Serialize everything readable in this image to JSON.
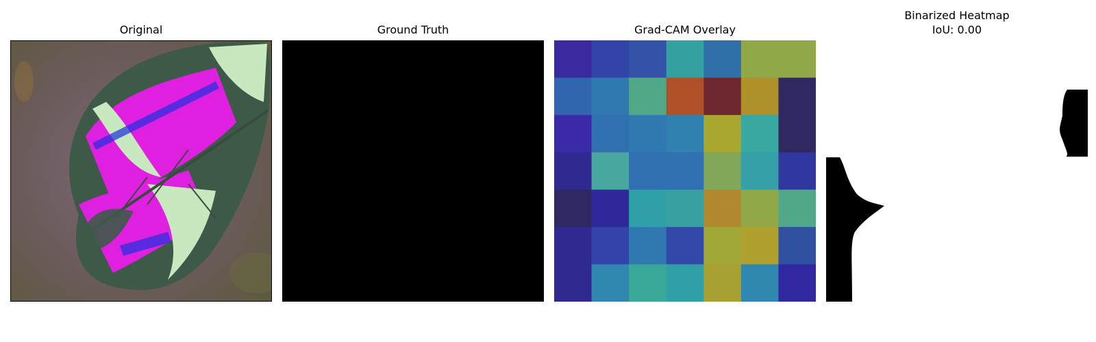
{
  "panels": {
    "original": {
      "title": "Original"
    },
    "ground_truth": {
      "title": "Ground Truth"
    },
    "gradcam": {
      "title": "Grad-CAM Overlay"
    },
    "binarized": {
      "title": "Binarized Heatmap",
      "subtitle": "IoU: 0.00"
    }
  },
  "chart_data": [
    {
      "type": "image",
      "title": "Original",
      "content": "leaf photo with magenta / blue / pale-green overlay"
    },
    {
      "type": "image",
      "title": "Ground Truth",
      "mask": "all zeros (black)"
    },
    {
      "type": "heatmap",
      "title": "Grad-CAM Overlay",
      "rows": 7,
      "cols": 7,
      "colors": [
        [
          "#3a2aa0",
          "#3344a8",
          "#3352a8",
          "#34a0a0",
          "#3070a8",
          "#90a848",
          "#90a848"
        ],
        [
          "#3066b0",
          "#3078b0",
          "#50a888",
          "#b05028",
          "#702830",
          "#b09028",
          "#302860"
        ],
        [
          "#3a2aa8",
          "#3070b0",
          "#3078b0",
          "#3080b0",
          "#a8a830",
          "#38a8a0",
          "#302860"
        ],
        [
          "#302a90",
          "#48a8a0",
          "#3070b0",
          "#3070b0",
          "#80a858",
          "#38a0a8",
          "#3038a0"
        ],
        [
          "#302860",
          "#30289a",
          "#30a0a8",
          "#38a0a0",
          "#b08830",
          "#90a848",
          "#50a888"
        ],
        [
          "#302a90",
          "#3344a8",
          "#3078b0",
          "#3348a8",
          "#a0a838",
          "#b0a030",
          "#3050a0"
        ],
        [
          "#302a90",
          "#3088b0",
          "#3aa898",
          "#30a0a8",
          "#a8a030",
          "#3088b0",
          "#3028a0"
        ]
      ]
    },
    {
      "type": "image",
      "title": "Binarized Heatmap",
      "subtitle": "IoU: 0.00",
      "mask": "binary, mostly white with two black edge regions"
    }
  ]
}
